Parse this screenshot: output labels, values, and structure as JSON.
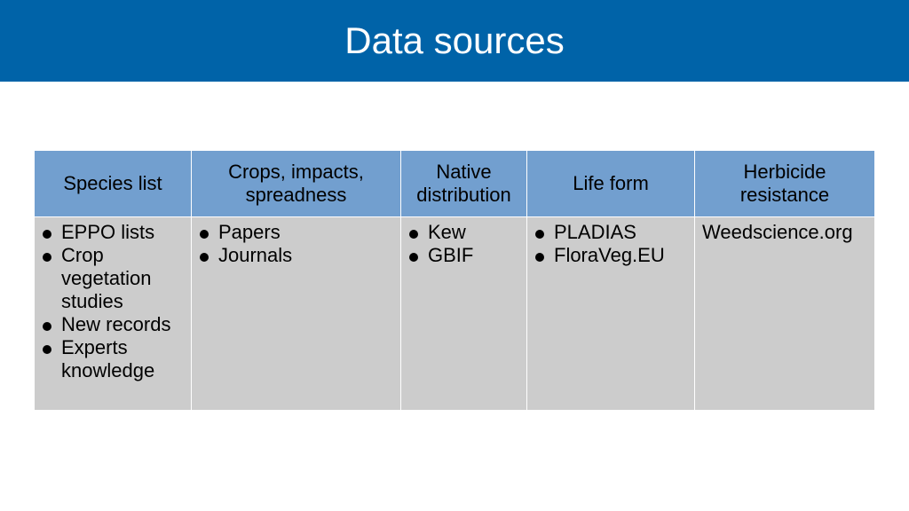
{
  "slide": {
    "title": "Data sources"
  },
  "table": {
    "headers": [
      "Species list",
      "Crops, impacts, spreadness",
      "Native distribution",
      "Life form",
      "Herbicide resistance"
    ],
    "col1_items": [
      "EPPO lists",
      "Crop vegetation studies",
      "New records",
      "Experts knowledge"
    ],
    "col2_items": [
      "Papers",
      "Journals"
    ],
    "col3_items": [
      "Kew",
      "GBIF"
    ],
    "col4_items": [
      "PLADIAS",
      "FloraVeg.EU"
    ],
    "col5_text": "Weedscience.org"
  },
  "colors": {
    "title_bar": "#0063a8",
    "header_cells": "#729fcf",
    "body_cells": "#cccccc"
  }
}
